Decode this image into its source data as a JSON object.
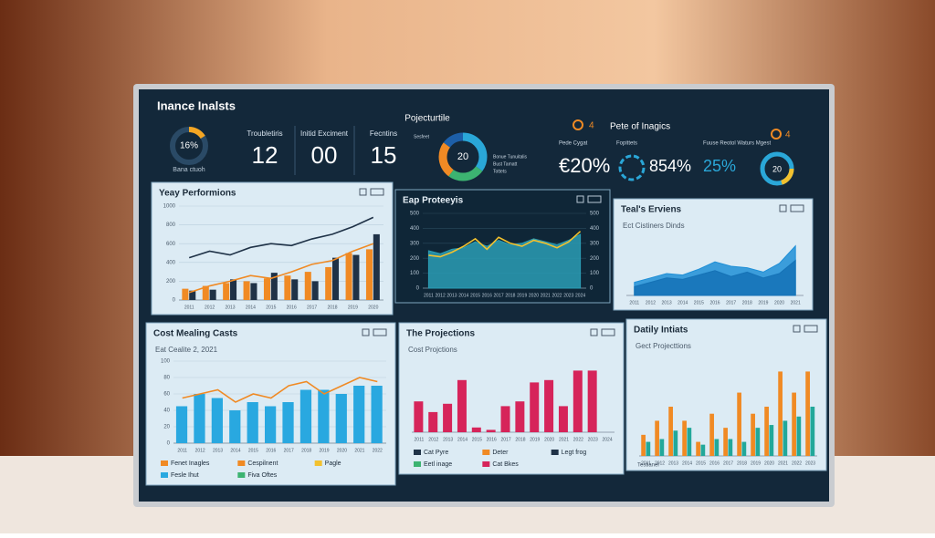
{
  "header": {
    "title": "Inance Inalsts",
    "gauge": {
      "value": 16,
      "label": "16%",
      "caption": "Bana ctuoh",
      "color": "#f5a623"
    },
    "kpis": [
      {
        "label": "Troubletiris",
        "value": 12
      },
      {
        "label": "Initid Exciment",
        "value": "00"
      },
      {
        "label": "Fecntins",
        "value": 15
      }
    ],
    "center": {
      "title": "Pojecturtile",
      "center_label": "20",
      "segments": [
        {
          "value": 35,
          "color": "#2aa7d8",
          "label": "Sesfeet"
        },
        {
          "value": 25,
          "color": "#3cb371",
          "label": "Bonue Tunuitalis"
        },
        {
          "value": 25,
          "color": "#f08a24",
          "label": "Bust Tamatt"
        },
        {
          "value": 15,
          "color": "#1d5fa8",
          "label": "Tottets"
        }
      ]
    },
    "right": {
      "title": "Pete of Inagics",
      "badge": "4",
      "badge2": "4",
      "metrics": [
        {
          "label": "Pede Cygat",
          "value": "€20%"
        },
        {
          "label": "Fopittets",
          "value": "854%"
        },
        {
          "label": "Fuuse Reotol Waturs Mgest",
          "value": "25%"
        }
      ],
      "mini_label": "20"
    }
  },
  "panels": [
    {
      "title": "Yeay Performions",
      "theme": "light",
      "categories": [
        "2011",
        "2012",
        "2013",
        "2014",
        "2015",
        "2016",
        "2017",
        "2018",
        "2019",
        "2020"
      ],
      "ylim": [
        0,
        1000
      ],
      "yticks": [
        0,
        200,
        400,
        600,
        800,
        1000
      ],
      "series": [
        {
          "kind": "bar",
          "color": "#f08a24",
          "values": [
            120,
            150,
            180,
            200,
            230,
            260,
            300,
            350,
            500,
            540
          ]
        },
        {
          "kind": "bar",
          "color": "#1f3247",
          "values": [
            100,
            110,
            220,
            180,
            290,
            220,
            200,
            450,
            480,
            700
          ]
        },
        {
          "kind": "line",
          "color": "#1f3247",
          "values": [
            450,
            520,
            480,
            560,
            600,
            580,
            650,
            700,
            780,
            880
          ]
        },
        {
          "kind": "line",
          "color": "#f08a24",
          "values": [
            80,
            150,
            200,
            260,
            230,
            300,
            380,
            420,
            520,
            600
          ]
        }
      ]
    },
    {
      "title": "Eap Proteeyis",
      "theme": "dark",
      "categories": [
        "2011",
        "2012",
        "2013",
        "2014",
        "2015",
        "2016",
        "2017",
        "2018",
        "2019",
        "2020",
        "2021",
        "2022",
        "2023",
        "2024"
      ],
      "ylim": [
        0,
        500
      ],
      "yticks": [
        0,
        100,
        200,
        300,
        400,
        500
      ],
      "series": [
        {
          "kind": "area",
          "color": "#2a9db5",
          "values": [
            250,
            230,
            260,
            270,
            310,
            280,
            320,
            290,
            300,
            330,
            310,
            290,
            320,
            360
          ]
        },
        {
          "kind": "line",
          "color": "#f2c12e",
          "values": [
            220,
            210,
            240,
            280,
            330,
            260,
            340,
            300,
            280,
            320,
            300,
            270,
            310,
            380
          ]
        }
      ]
    },
    {
      "title": "Teal's Erviens",
      "subtitle": "Ect Cistiners Dinds",
      "theme": "light",
      "categories": [
        "2011",
        "2012",
        "2013",
        "2014",
        "2015",
        "2016",
        "2017",
        "2018",
        "2019",
        "2020",
        "2021"
      ],
      "ylim": [
        0,
        400
      ],
      "series": [
        {
          "kind": "area",
          "color": "#1f8fd6",
          "values": [
            90,
            120,
            150,
            140,
            180,
            230,
            200,
            190,
            160,
            220,
            340
          ]
        },
        {
          "kind": "area",
          "color": "#1572b6",
          "values": [
            60,
            90,
            120,
            110,
            140,
            170,
            130,
            160,
            120,
            150,
            240
          ]
        }
      ]
    },
    {
      "title": "Cost Mealing Casts",
      "subtitle": "Eat Cealite 2, 2021",
      "theme": "light",
      "categories": [
        "2011",
        "2012",
        "2013",
        "2014",
        "2015",
        "2016",
        "2017",
        "2018",
        "2019",
        "2020",
        "2021",
        "2022"
      ],
      "ylim": [
        0,
        100
      ],
      "yticks": [
        0,
        20,
        40,
        60,
        80,
        100
      ],
      "series": [
        {
          "kind": "bar",
          "color": "#29a8e0",
          "values": [
            45,
            60,
            55,
            40,
            50,
            45,
            50,
            65,
            65,
            60,
            70,
            70
          ]
        },
        {
          "kind": "line",
          "color": "#f08a24",
          "values": [
            55,
            60,
            65,
            50,
            60,
            55,
            70,
            75,
            60,
            70,
            80,
            75
          ]
        }
      ],
      "legend": [
        {
          "label": "Fenet Inagles",
          "color": "#f08a24"
        },
        {
          "label": "Cespilnent",
          "color": "#f08a24"
        },
        {
          "label": "Pagle",
          "color": "#f2c12e"
        },
        {
          "label": "Fesle Ihut",
          "color": "#29a8e0"
        },
        {
          "label": "Fiva Oftes",
          "color": "#3cb371"
        }
      ]
    },
    {
      "title": "The Projections",
      "subtitle": "Cost Projctions",
      "theme": "light",
      "categories": [
        "2011",
        "2012",
        "2013",
        "2014",
        "2015",
        "2016",
        "2017",
        "2018",
        "2019",
        "2020",
        "2021",
        "2022",
        "2023",
        "2024"
      ],
      "ylim": [
        0,
        60
      ],
      "series": [
        {
          "kind": "bar",
          "color": "#d6245a",
          "values": [
            26,
            17,
            24,
            44,
            4,
            2,
            22,
            26,
            42,
            44,
            22,
            52,
            52,
            0
          ]
        }
      ],
      "legend": [
        {
          "label": "Cat Pyre",
          "color": "#1f3247"
        },
        {
          "label": "Deter",
          "color": "#f08a24"
        },
        {
          "label": "Legt frog",
          "color": "#1f3247"
        },
        {
          "label": "Eetl inage",
          "color": "#3cb371"
        },
        {
          "label": "Cat Bkes",
          "color": "#d6245a"
        }
      ]
    },
    {
      "title": "Datily Intiats",
      "subtitle": "Gect Projecttions",
      "theme": "light",
      "categories": [
        "2011",
        "2012",
        "2013",
        "2014",
        "2015",
        "2016",
        "2017",
        "2018",
        "2019",
        "2020",
        "2021",
        "2022",
        "2023"
      ],
      "ylim": [
        0,
        70
      ],
      "series": [
        {
          "kind": "bar",
          "color": "#f08a24",
          "values": [
            15,
            25,
            35,
            25,
            10,
            30,
            20,
            45,
            30,
            35,
            60,
            45,
            60
          ]
        },
        {
          "kind": "bar",
          "color": "#22a89a",
          "values": [
            10,
            12,
            18,
            20,
            8,
            12,
            12,
            10,
            20,
            22,
            25,
            28,
            35
          ]
        }
      ],
      "footer": "Testianel"
    }
  ]
}
